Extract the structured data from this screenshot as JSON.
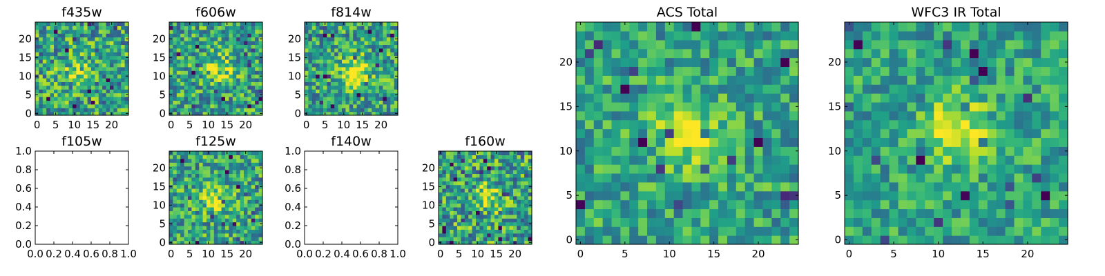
{
  "chart_data": [
    {
      "type": "heatmap",
      "title": "f435w",
      "xticks": [
        "0",
        "5",
        "10",
        "15",
        "20"
      ],
      "yticks": [
        "0",
        "5",
        "10",
        "15",
        "20"
      ],
      "xlim": [
        -0.5,
        24.5
      ],
      "ylim": [
        -0.5,
        24.5
      ],
      "grid_size": 25,
      "colormap": "viridis",
      "peak": [
        11,
        11
      ],
      "peak_strength": 0.2,
      "noise": 0.33,
      "seed": 11
    },
    {
      "type": "heatmap",
      "title": "f606w",
      "xticks": [
        "0",
        "5",
        "10",
        "15",
        "20"
      ],
      "yticks": [
        "0",
        "5",
        "10",
        "15",
        "20"
      ],
      "xlim": [
        -0.5,
        24.5
      ],
      "ylim": [
        -0.5,
        24.5
      ],
      "grid_size": 25,
      "colormap": "viridis",
      "peak": [
        13,
        12
      ],
      "peak_strength": 0.3,
      "noise": 0.3,
      "seed": 22
    },
    {
      "type": "heatmap",
      "title": "f814w",
      "xticks": [
        "0",
        "5",
        "10",
        "15",
        "20"
      ],
      "yticks": [
        "0",
        "5",
        "10",
        "15",
        "20"
      ],
      "xlim": [
        -0.5,
        24.5
      ],
      "ylim": [
        -0.5,
        24.5
      ],
      "grid_size": 25,
      "colormap": "viridis",
      "peak": [
        13,
        11
      ],
      "peak_strength": 0.45,
      "noise": 0.3,
      "seed": 33
    },
    {
      "type": "empty",
      "title": "f105w",
      "xticks": [
        "0.0",
        "0.2",
        "0.4",
        "0.6",
        "0.8",
        "1.0"
      ],
      "yticks": [
        "0.0",
        "0.2",
        "0.4",
        "0.6",
        "0.8",
        "1.0"
      ],
      "xlim": [
        0,
        1
      ],
      "ylim": [
        0,
        1
      ]
    },
    {
      "type": "heatmap",
      "title": "f125w",
      "xticks": [
        "0",
        "5",
        "10",
        "15",
        "20"
      ],
      "yticks": [
        "0",
        "5",
        "10",
        "15",
        "20"
      ],
      "xlim": [
        -0.5,
        24.5
      ],
      "ylim": [
        -0.5,
        24.5
      ],
      "grid_size": 25,
      "colormap": "viridis",
      "peak": [
        12,
        12
      ],
      "peak_strength": 0.35,
      "noise": 0.3,
      "seed": 44
    },
    {
      "type": "empty",
      "title": "f140w",
      "xticks": [
        "0.0",
        "0.2",
        "0.4",
        "0.6",
        "0.8",
        "1.0"
      ],
      "yticks": [
        "0.0",
        "0.2",
        "0.4",
        "0.6",
        "0.8",
        "1.0"
      ],
      "xlim": [
        0,
        1
      ],
      "ylim": [
        0,
        1
      ]
    },
    {
      "type": "heatmap",
      "title": "f160w",
      "xticks": [
        "0",
        "5",
        "10",
        "15",
        "20"
      ],
      "yticks": [
        "0",
        "5",
        "10",
        "15",
        "20"
      ],
      "xlim": [
        -0.5,
        24.5
      ],
      "ylim": [
        -0.5,
        24.5
      ],
      "grid_size": 25,
      "colormap": "viridis",
      "peak": [
        13,
        12
      ],
      "peak_strength": 0.3,
      "noise": 0.34,
      "seed": 55
    },
    {
      "type": "heatmap",
      "title": "ACS Total",
      "xticks": [
        "0",
        "5",
        "10",
        "15",
        "20"
      ],
      "yticks": [
        "0",
        "5",
        "10",
        "15",
        "20"
      ],
      "xlim": [
        -0.5,
        24.5
      ],
      "ylim": [
        -0.5,
        24.5
      ],
      "grid_size": 25,
      "colormap": "viridis",
      "peak": [
        12.5,
        12
      ],
      "peak_strength": 0.35,
      "noise": 0.24,
      "seed": 66
    },
    {
      "type": "heatmap",
      "title": "WFC3 IR Total",
      "xticks": [
        "0",
        "5",
        "10",
        "15",
        "20"
      ],
      "yticks": [
        "0",
        "5",
        "10",
        "15",
        "20"
      ],
      "xlim": [
        -0.5,
        24.5
      ],
      "ylim": [
        -0.5,
        24.5
      ],
      "grid_size": 25,
      "colormap": "viridis",
      "peak": [
        12,
        12.5
      ],
      "peak_strength": 0.35,
      "noise": 0.22,
      "seed": 77
    }
  ]
}
